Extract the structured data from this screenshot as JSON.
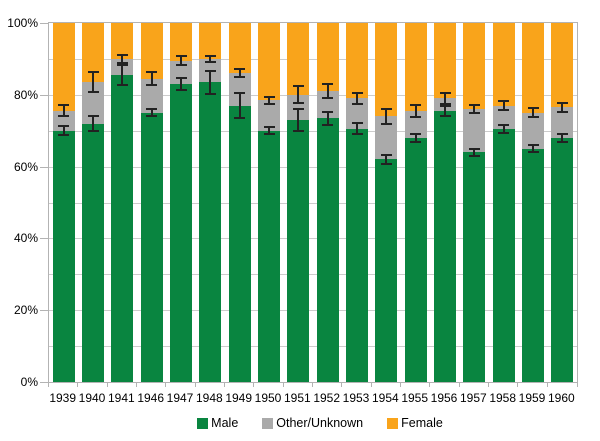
{
  "chart_data": {
    "type": "bar",
    "subtype": "stacked-percent-vertical",
    "title": "",
    "xlabel": "",
    "ylabel": "",
    "categories": [
      "1939",
      "1940",
      "1941",
      "1946",
      "1947",
      "1948",
      "1949",
      "1950",
      "1951",
      "1952",
      "1953",
      "1954",
      "1955",
      "1956",
      "1957",
      "1958",
      "1959",
      "1960"
    ],
    "series": [
      {
        "name": "Male",
        "color": "#098540",
        "values": [
          70,
          72,
          85.5,
          75,
          83,
          83.5,
          77,
          70,
          73,
          73.5,
          70.5,
          62,
          68,
          75.5,
          64,
          70.5,
          65,
          68
        ],
        "error_plus_minus": [
          1.5,
          2.3,
          3.0,
          1.2,
          1.9,
          3.5,
          3.8,
          1.3,
          3.3,
          2.1,
          1.8,
          1.6,
          1.4,
          1.6,
          1.2,
          1.3,
          1.2,
          1.4
        ]
      },
      {
        "name": "Other/Unknown",
        "color": "#AAAAAA",
        "values": [
          5.5,
          11.5,
          4.5,
          9.5,
          6.5,
          6.5,
          9,
          8.5,
          7,
          7.5,
          8.5,
          12,
          7.5,
          3.5,
          12,
          6.5,
          10,
          8.5
        ],
        "error_plus_minus_at_stack_top": [
          1.8,
          3.0,
          1.3,
          2.1,
          1.6,
          1.2,
          1.4,
          1.3,
          2.6,
          2.3,
          1.9,
          2.3,
          2.0,
          1.9,
          1.3,
          1.6,
          1.6,
          1.6
        ]
      },
      {
        "name": "Female",
        "color": "#F9A41B",
        "values": [
          24.5,
          16.5,
          10,
          15.5,
          10.5,
          10,
          14,
          21.5,
          20,
          19,
          21,
          26,
          24.5,
          21,
          24,
          23,
          25,
          23.5
        ]
      }
    ],
    "y_axis": {
      "min": 0,
      "max": 100,
      "major_tick_step": 20,
      "minor_gridline_step": 10,
      "tick_labels": [
        "0%",
        "20%",
        "40%",
        "60%",
        "80%",
        "100%"
      ]
    },
    "legend": {
      "position": "bottom",
      "entries": [
        "Male",
        "Other/Unknown",
        "Female"
      ]
    },
    "grid": true
  },
  "styles": {
    "background": "#FFFFFF",
    "gridline_color": "#CCCCCC",
    "axis_color": "#B3B3B3",
    "error_bar_color": "#222222",
    "text_color": "#000000"
  }
}
